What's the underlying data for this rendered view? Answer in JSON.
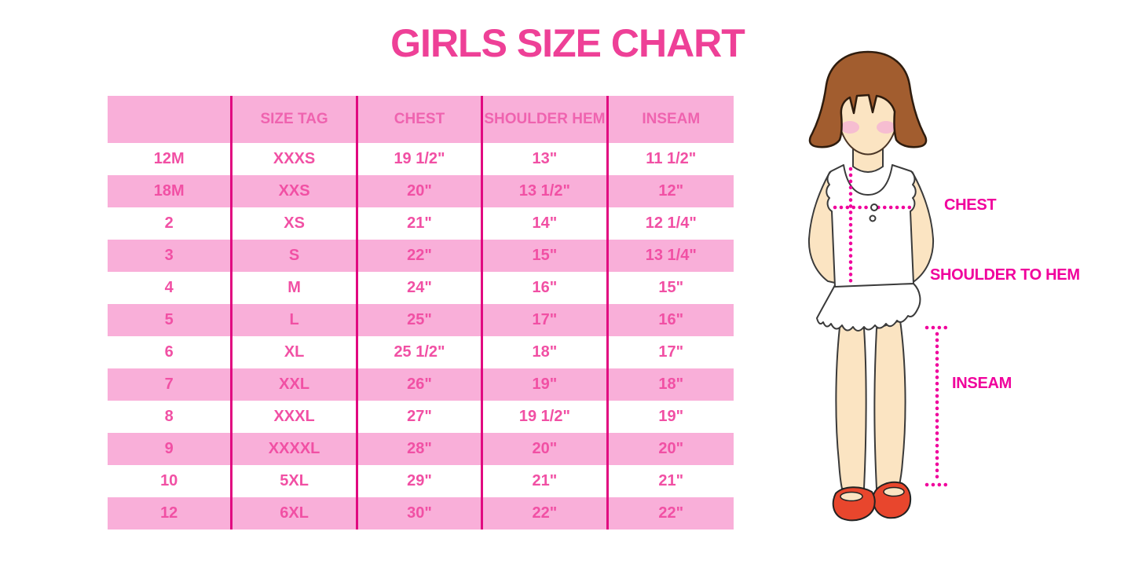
{
  "title": "GIRLS SIZE CHART",
  "chart_data": {
    "type": "table",
    "title": "GIRLS SIZE CHART",
    "columns": [
      "",
      "SIZE TAG",
      "CHEST",
      "SHOULDER HEM",
      "INSEAM"
    ],
    "rows": [
      [
        "12M",
        "XXXS",
        "19 1/2\"",
        "13\"",
        "11 1/2\""
      ],
      [
        "18M",
        "XXS",
        "20\"",
        "13 1/2\"",
        "12\""
      ],
      [
        "2",
        "XS",
        "21\"",
        "14\"",
        "12 1/4\""
      ],
      [
        "3",
        "S",
        "22\"",
        "15\"",
        "13 1/4\""
      ],
      [
        "4",
        "M",
        "24\"",
        "16\"",
        "15\""
      ],
      [
        "5",
        "L",
        "25\"",
        "17\"",
        "16\""
      ],
      [
        "6",
        "XL",
        "25 1/2\"",
        "18\"",
        "17\""
      ],
      [
        "7",
        "XXL",
        "26\"",
        "19\"",
        "18\""
      ],
      [
        "8",
        "XXXL",
        "27\"",
        "19 1/2\"",
        "19\""
      ],
      [
        "9",
        "XXXXL",
        "28\"",
        "20\"",
        "20\""
      ],
      [
        "10",
        "5XL",
        "29\"",
        "21\"",
        "21\""
      ],
      [
        "12",
        "6XL",
        "30\"",
        "22\"",
        "22\""
      ]
    ],
    "layout": {
      "striped": true,
      "stripe_pattern": "header pink, then alternating white/pink",
      "grid": "vertical column separators only"
    }
  },
  "diagram": {
    "chest_label": "CHEST",
    "shoulder_to_hem_label": "SHOULDER TO HEM",
    "inseam_label": "INSEAM",
    "figure": "illustrated girl with bob haircut, white ruffled top and skirt, red mary-jane shoes, dotted measurement guides"
  },
  "colors": {
    "title_pink": "#EE4097",
    "header_text": "#EF63AF",
    "cell_text": "#F150A4",
    "band": "#F9AFD9",
    "grid_line": "#E10980",
    "label_magenta": "#F0009C",
    "hair_brown": "#A25D2F",
    "hair_outline": "#2E1C0E",
    "outline_dark": "#3A3A3A",
    "skin": "#FBE4C2",
    "blush": "#F6BDD1",
    "shoe_red": "#E8462D",
    "shirt_white": "#FFFFFF"
  }
}
